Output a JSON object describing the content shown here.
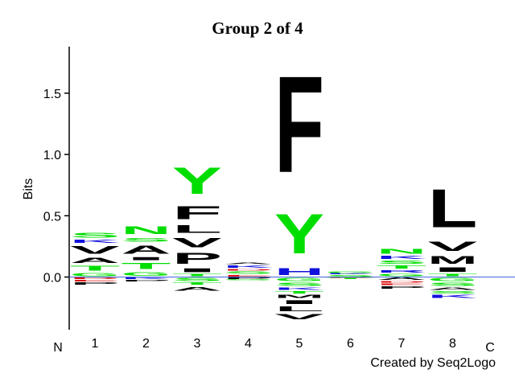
{
  "chart_data": {
    "type": "logo",
    "title": "Group 2 of 4",
    "y_label": "Bits",
    "start_label": "N",
    "end_label": "C",
    "credit": "Created by Seq2Logo",
    "ylim": [
      -0.43,
      1.88
    ],
    "yticks": [
      {
        "value": 0,
        "label": "0.0"
      },
      0.5,
      {
        "value": 1,
        "label": "1.0"
      },
      1.5
    ],
    "zero_line_color": "#4466dd",
    "letter_colors": {
      "S": "#00dd00",
      "T": "#00dd00",
      "Y": "#00dd00",
      "N": "#00dd00",
      "G": "#00dd00",
      "Q": "#00dd00",
      "C": "#00dd00",
      "K": "#1111dd",
      "R": "#1111dd",
      "H": "#1111dd",
      "D": "#dd1111",
      "E": "#dd1111",
      "F": "#000000",
      "L": "#000000",
      "V": "#000000",
      "I": "#000000",
      "M": "#000000",
      "A": "#000000",
      "P": "#000000",
      "W": "#000000"
    },
    "positions": [
      {
        "label": "1",
        "positive": [
          {
            "letter": "G",
            "value": 0.04
          },
          {
            "letter": "T",
            "value": 0.06
          },
          {
            "letter": "A",
            "value": 0.07
          },
          {
            "letter": "V",
            "value": 0.1
          },
          {
            "letter": "K",
            "value": 0.04
          },
          {
            "letter": "S",
            "value": 0.06
          }
        ],
        "negative": [
          {
            "letter": "D",
            "value": -0.02
          },
          {
            "letter": "E",
            "value": -0.02
          },
          {
            "letter": "P",
            "value": -0.03
          }
        ]
      },
      {
        "label": "2",
        "positive": [
          {
            "letter": "G",
            "value": 0.05
          },
          {
            "letter": "T",
            "value": 0.08
          },
          {
            "letter": "I",
            "value": 0.04
          },
          {
            "letter": "A",
            "value": 0.11
          },
          {
            "letter": "S",
            "value": 0.05
          },
          {
            "letter": "N",
            "value": 0.1
          }
        ],
        "negative": [
          {
            "letter": "K",
            "value": -0.02
          },
          {
            "letter": "P",
            "value": -0.02
          }
        ]
      },
      {
        "label": "3",
        "positive": [
          {
            "letter": "T",
            "value": 0.03
          },
          {
            "letter": "I",
            "value": 0.05
          },
          {
            "letter": "P",
            "value": 0.14
          },
          {
            "letter": "V",
            "value": 0.12
          },
          {
            "letter": "L",
            "value": 0.1
          },
          {
            "letter": "F",
            "value": 0.17
          },
          {
            "letter": "Y",
            "value": 0.35
          }
        ],
        "negative": [
          {
            "letter": "S",
            "value": -0.04
          },
          {
            "letter": "T",
            "value": -0.03
          },
          {
            "letter": "A",
            "value": -0.05
          }
        ]
      },
      {
        "label": "4",
        "positive": [
          {
            "letter": "E",
            "value": 0.02
          },
          {
            "letter": "S",
            "value": 0.03
          },
          {
            "letter": "D",
            "value": 0.02
          },
          {
            "letter": "K",
            "value": 0.03
          },
          {
            "letter": "A",
            "value": 0.02
          }
        ],
        "negative": [
          {
            "letter": "P",
            "value": -0.02
          },
          {
            "letter": "G",
            "value": -0.01
          }
        ]
      },
      {
        "label": "5",
        "positive": [
          {
            "letter": "H",
            "value": 0.09
          },
          {
            "letter": "Y",
            "value": 0.52
          },
          {
            "letter": "F",
            "value": 1.26
          }
        ],
        "negative": [
          {
            "letter": "G",
            "value": -0.04
          },
          {
            "letter": "S",
            "value": -0.04
          },
          {
            "letter": "K",
            "value": -0.03
          },
          {
            "letter": "T",
            "value": -0.03
          },
          {
            "letter": "M",
            "value": -0.04
          },
          {
            "letter": "I",
            "value": -0.05
          },
          {
            "letter": "L",
            "value": -0.06
          },
          {
            "letter": "V",
            "value": -0.07
          }
        ]
      },
      {
        "label": "6",
        "positive": [
          {
            "letter": "S",
            "value": 0.02
          },
          {
            "letter": "K",
            "value": 0.01
          },
          {
            "letter": "G",
            "value": 0.02
          }
        ],
        "negative": [
          {
            "letter": "D",
            "value": -0.01
          },
          {
            "letter": "T",
            "value": -0.01
          }
        ]
      },
      {
        "label": "7",
        "positive": [
          {
            "letter": "G",
            "value": 0.03
          },
          {
            "letter": "R",
            "value": 0.03
          },
          {
            "letter": "T",
            "value": 0.04
          },
          {
            "letter": "S",
            "value": 0.04
          },
          {
            "letter": "K",
            "value": 0.04
          },
          {
            "letter": "N",
            "value": 0.06
          }
        ],
        "negative": [
          {
            "letter": "A",
            "value": -0.03
          },
          {
            "letter": "D",
            "value": -0.02
          },
          {
            "letter": "E",
            "value": -0.02
          },
          {
            "letter": "P",
            "value": -0.03
          }
        ]
      },
      {
        "label": "8",
        "positive": [
          {
            "letter": "T",
            "value": 0.03
          },
          {
            "letter": "I",
            "value": 0.06
          },
          {
            "letter": "M",
            "value": 0.1
          },
          {
            "letter": "V",
            "value": 0.12
          },
          {
            "letter": "L",
            "value": 0.5
          }
        ],
        "negative": [
          {
            "letter": "G",
            "value": -0.04
          },
          {
            "letter": "S",
            "value": -0.04
          },
          {
            "letter": "A",
            "value": -0.03
          },
          {
            "letter": "S",
            "value": -0.03
          },
          {
            "letter": "K",
            "value": -0.04
          }
        ]
      }
    ]
  }
}
